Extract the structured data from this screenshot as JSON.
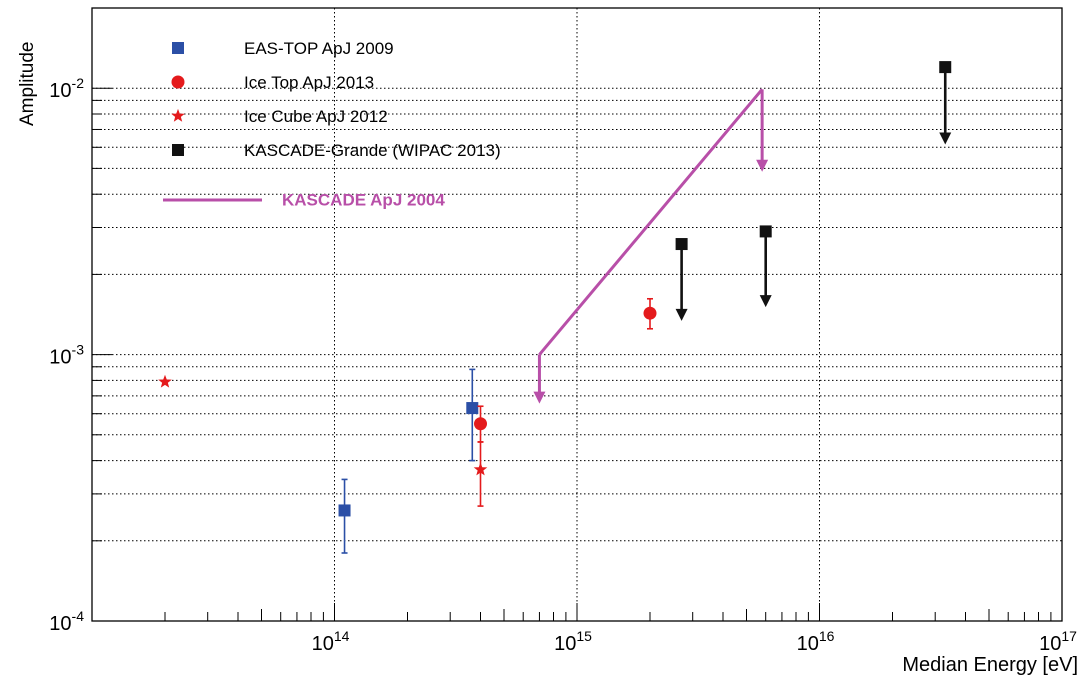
{
  "chart_data": {
    "type": "scatter",
    "title": "",
    "xlabel": "Median Energy [eV]",
    "ylabel": "Amplitude",
    "x_scale": "log",
    "y_scale": "log",
    "xlim": [
      10000000000000.0,
      1e+17
    ],
    "ylim": [
      0.0001,
      0.02
    ],
    "grid": true,
    "legend_position": "top-left",
    "x_major_ticks": [
      {
        "value": 100000000000000.0,
        "mantissa": "10",
        "exp": "14"
      },
      {
        "value": 1000000000000000.0,
        "mantissa": "10",
        "exp": "15"
      },
      {
        "value": 1e+16,
        "mantissa": "10",
        "exp": "16"
      },
      {
        "value": 1e+17,
        "mantissa": "10",
        "exp": "17"
      }
    ],
    "y_major_ticks": [
      {
        "value": 0.0001,
        "mantissa": "10",
        "exp": "-4"
      },
      {
        "value": 0.001,
        "mantissa": "10",
        "exp": "-3"
      },
      {
        "value": 0.01,
        "mantissa": "10",
        "exp": "-2"
      }
    ],
    "series": [
      {
        "name": "EAS-TOP ApJ 2009",
        "marker": "square",
        "color": "#2b4fa6",
        "points": [
          {
            "x": 110000000000000.0,
            "y": 0.00026,
            "ylow": 0.00018,
            "yhigh": 0.00034
          },
          {
            "x": 370000000000000.0,
            "y": 0.00063,
            "ylow": 0.0004,
            "yhigh": 0.00088
          }
        ]
      },
      {
        "name": "Ice Top ApJ 2013",
        "marker": "circle",
        "color": "#e41a1c",
        "points": [
          {
            "x": 400000000000000.0,
            "y": 0.00055,
            "ylow": 0.00047,
            "yhigh": 0.00064
          },
          {
            "x": 2000000000000000.0,
            "y": 0.00143,
            "ylow": 0.00125,
            "yhigh": 0.00162
          }
        ]
      },
      {
        "name": "Ice Cube ApJ 2012",
        "marker": "star",
        "color": "#e41a1c",
        "points": [
          {
            "x": 20000000000000.0,
            "y": 0.00079,
            "ylow": null,
            "yhigh": null
          },
          {
            "x": 400000000000000.0,
            "y": 0.00037,
            "ylow": 0.00027,
            "yhigh": 0.00047
          }
        ]
      },
      {
        "name": "KASCADE-Grande (WIPAC 2013)",
        "marker": "square",
        "color": "#111111",
        "points": [
          {
            "x": 2700000000000000.0,
            "y": 0.0026,
            "upper_limit_to": 0.00135
          },
          {
            "x": 6000000000000000.0,
            "y": 0.0029,
            "upper_limit_to": 0.00152
          },
          {
            "x": 3.3e+16,
            "y": 0.012,
            "upper_limit_to": 0.0062
          }
        ]
      },
      {
        "name": "KASCADE ApJ 2004",
        "marker": "line",
        "color": "#b84fa8",
        "points": [
          {
            "x": 700000000000000.0,
            "y": 0.001,
            "upper_limit_to": 0.00066
          },
          {
            "x": 5800000000000000.0,
            "y": 0.0099,
            "upper_limit_to": 0.0049
          }
        ]
      }
    ]
  }
}
